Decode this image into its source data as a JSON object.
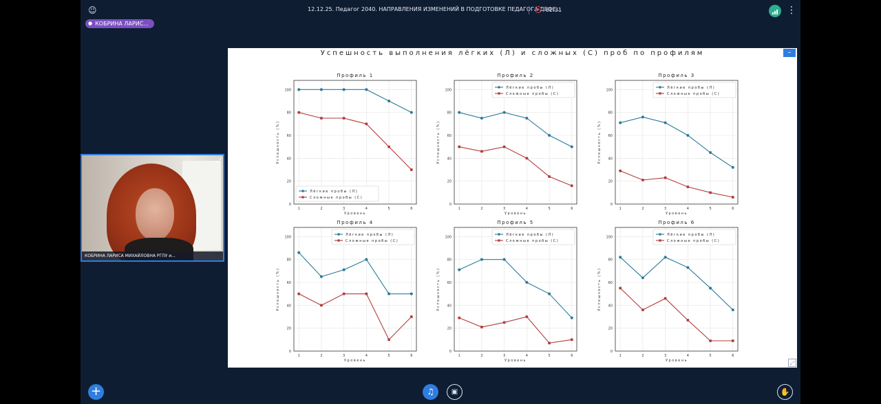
{
  "topbar": {
    "title": "12.12.25. Педагог 2040. НАПРАВЛЕНИЯ ИЗМЕНЕНИЙ В ПОДГОТОВКЕ ПЕДАГОГА-ДЕФЕ...",
    "timer": "62:31"
  },
  "speaker": {
    "pill_label": "КОБРИНА ЛАРИС..."
  },
  "video": {
    "name": "КОБРИНА ЛАРИСА МИХАЙЛОВНА РГПУ и..."
  },
  "slide": {
    "title": "Успешность выполнения лёгких (Л) и сложных (С) проб по профилям",
    "minimize_label": "–"
  },
  "colors": {
    "easy": "#2b7a99",
    "hard": "#b23a3a",
    "accent": "#2f7de1"
  },
  "chart_data": [
    {
      "type": "line",
      "title": "Профиль 1",
      "xlabel": "Уровень",
      "ylabel": "Успешность (%)",
      "x": [
        1,
        2,
        3,
        4,
        5,
        6
      ],
      "ylim": [
        0,
        108
      ],
      "yticks": [
        0,
        20,
        40,
        60,
        80,
        100
      ],
      "grid": true,
      "legend": "bottom-left",
      "series": [
        {
          "name": "Лёгкие пробы (Л)",
          "values": [
            100,
            100,
            100,
            100,
            90,
            80
          ]
        },
        {
          "name": "Сложные пробы (С)",
          "values": [
            80,
            75,
            75,
            70,
            50,
            30
          ]
        }
      ]
    },
    {
      "type": "line",
      "title": "Профиль 2",
      "xlabel": "Уровень",
      "ylabel": "Успешность (%)",
      "x": [
        1,
        2,
        3,
        4,
        5,
        6
      ],
      "ylim": [
        0,
        108
      ],
      "yticks": [
        0,
        20,
        40,
        60,
        80,
        100
      ],
      "grid": true,
      "legend": "top-right",
      "series": [
        {
          "name": "Лёгкие пробы (Л)",
          "values": [
            80,
            75,
            80,
            75,
            60,
            50
          ]
        },
        {
          "name": "Сложные пробы (С)",
          "values": [
            50,
            46,
            50,
            40,
            24,
            16
          ]
        }
      ]
    },
    {
      "type": "line",
      "title": "Профиль 3",
      "xlabel": "Уровень",
      "ylabel": "Успешность (%)",
      "x": [
        1,
        2,
        3,
        4,
        5,
        6
      ],
      "ylim": [
        0,
        108
      ],
      "yticks": [
        0,
        20,
        40,
        60,
        80,
        100
      ],
      "grid": true,
      "legend": "top-right",
      "series": [
        {
          "name": "Лёгкие пробы (Л)",
          "values": [
            71,
            76,
            71,
            60,
            45,
            32
          ]
        },
        {
          "name": "Сложные пробы (С)",
          "values": [
            29,
            21,
            23,
            15,
            10,
            6
          ]
        }
      ]
    },
    {
      "type": "line",
      "title": "Профиль 4",
      "xlabel": "Уровень",
      "ylabel": "Успешность (%)",
      "x": [
        1,
        2,
        3,
        4,
        5,
        6
      ],
      "ylim": [
        0,
        108
      ],
      "yticks": [
        0,
        20,
        40,
        60,
        80,
        100
      ],
      "grid": true,
      "legend": "top-right",
      "series": [
        {
          "name": "Лёгкие пробы (Л)",
          "values": [
            86,
            65,
            71,
            80,
            50,
            50
          ]
        },
        {
          "name": "Сложные пробы (С)",
          "values": [
            50,
            40,
            50,
            50,
            10,
            30
          ]
        }
      ]
    },
    {
      "type": "line",
      "title": "Профиль 5",
      "xlabel": "Уровень",
      "ylabel": "Успешность (%)",
      "x": [
        1,
        2,
        3,
        4,
        5,
        6
      ],
      "ylim": [
        0,
        108
      ],
      "yticks": [
        0,
        20,
        40,
        60,
        80,
        100
      ],
      "grid": true,
      "legend": "top-right",
      "series": [
        {
          "name": "Лёгкие пробы (Л)",
          "values": [
            71,
            80,
            80,
            60,
            50,
            29
          ]
        },
        {
          "name": "Сложные пробы (С)",
          "values": [
            29,
            21,
            25,
            30,
            7,
            10
          ]
        }
      ]
    },
    {
      "type": "line",
      "title": "Профиль 6",
      "xlabel": "Уровень",
      "ylabel": "Успешность (%)",
      "x": [
        1,
        2,
        3,
        4,
        5,
        6
      ],
      "ylim": [
        0,
        108
      ],
      "yticks": [
        0,
        20,
        40,
        60,
        80,
        100
      ],
      "grid": true,
      "legend": "top-right",
      "series": [
        {
          "name": "Лёгкие пробы (Л)",
          "values": [
            82,
            64,
            82,
            73,
            55,
            36
          ]
        },
        {
          "name": "Сложные пробы (С)",
          "values": [
            55,
            36,
            46,
            27,
            9,
            9
          ]
        }
      ]
    }
  ]
}
